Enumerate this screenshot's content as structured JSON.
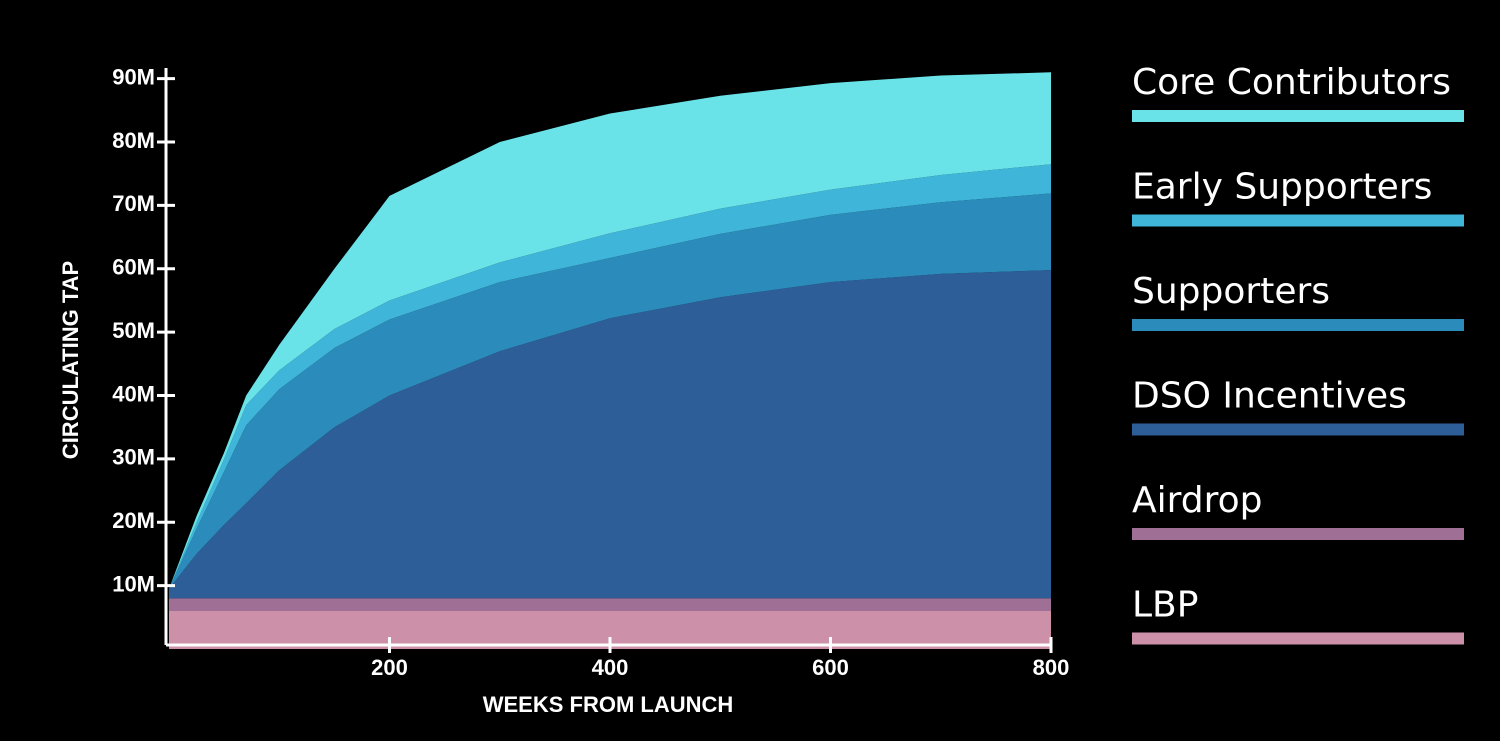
{
  "chart_data": {
    "type": "stacked-area",
    "xlabel": "WEEKS FROM LAUNCH",
    "ylabel": "CIRCULATING TAP",
    "x": [
      0,
      25,
      50,
      70,
      100,
      150,
      200,
      300,
      400,
      500,
      600,
      700,
      800
    ],
    "series": [
      {
        "name": "LBP",
        "color": "#cc91a8",
        "values": [
          6,
          6,
          6,
          6,
          6,
          6,
          6,
          6,
          6,
          6,
          6,
          6,
          6
        ]
      },
      {
        "name": "Airdrop",
        "color": "#a06f95",
        "values": [
          2,
          2,
          2,
          2,
          2,
          2,
          2,
          2,
          2,
          2,
          2,
          2,
          2
        ]
      },
      {
        "name": "DSO Incentives",
        "color": "#2e5e98",
        "values": [
          1.5,
          7,
          11.6,
          15,
          20.2,
          27,
          32,
          39,
          44.2,
          47.5,
          49.9,
          51.2,
          51.8
        ]
      },
      {
        "name": "Supporters",
        "color": "#2b8bba",
        "values": [
          0,
          4,
          8.4,
          12.3,
          12.8,
          12.5,
          12,
          10.9,
          9.5,
          10,
          10.6,
          11.3,
          12.1
        ]
      },
      {
        "name": "Early Supporters",
        "color": "#3eb5d9",
        "values": [
          0,
          1,
          2,
          3.2,
          3,
          3,
          3,
          3.1,
          3.9,
          4,
          4,
          4.3,
          4.6
        ]
      },
      {
        "name": "Core Contributors",
        "color": "#6ae3e8",
        "values": [
          0,
          1,
          1,
          1.5,
          4,
          9.5,
          16.5,
          19,
          18.9,
          17.8,
          16.8,
          15.7,
          14.5
        ]
      }
    ],
    "xlim": [
      0,
      800
    ],
    "xticks": [
      200,
      400,
      600,
      800
    ],
    "ylim": [
      0,
      92
    ],
    "yticks": [
      {
        "value": 10,
        "label": "10M"
      },
      {
        "value": 20,
        "label": "20M"
      },
      {
        "value": 30,
        "label": "30M"
      },
      {
        "value": 40,
        "label": "40M"
      },
      {
        "value": 50,
        "label": "50M"
      },
      {
        "value": 60,
        "label": "60M"
      },
      {
        "value": 70,
        "label": "70M"
      },
      {
        "value": 80,
        "label": "80M"
      },
      {
        "value": 90,
        "label": "90M"
      }
    ],
    "legend": "right"
  }
}
